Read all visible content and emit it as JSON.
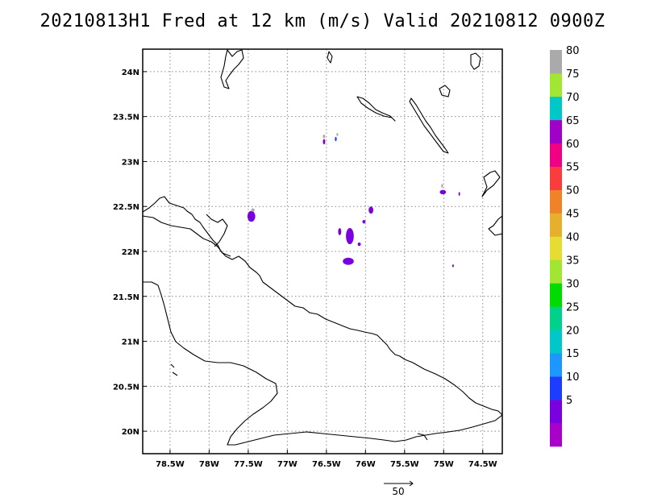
{
  "title": "20210813H1 Fred at 12 km (m/s) Valid 20210812 0900Z",
  "map": {
    "lon_range": [
      -78.85,
      -74.25
    ],
    "lat_range": [
      19.75,
      24.25
    ],
    "x_ticks": [
      {
        "lon": -78.5,
        "label": "78.5W"
      },
      {
        "lon": -78,
        "label": "78W"
      },
      {
        "lon": -77.5,
        "label": "77.5W"
      },
      {
        "lon": -77,
        "label": "77W"
      },
      {
        "lon": -76.5,
        "label": "76.5W"
      },
      {
        "lon": -76,
        "label": "76W"
      },
      {
        "lon": -75.5,
        "label": "75.5W"
      },
      {
        "lon": -75,
        "label": "75W"
      },
      {
        "lon": -74.5,
        "label": "74.5W"
      }
    ],
    "y_ticks": [
      {
        "lat": 24,
        "label": "24N"
      },
      {
        "lat": 23.5,
        "label": "23.5N"
      },
      {
        "lat": 23,
        "label": "23N"
      },
      {
        "lat": 22.5,
        "label": "22.5N"
      },
      {
        "lat": 22,
        "label": "22N"
      },
      {
        "lat": 21.5,
        "label": "21.5N"
      },
      {
        "lat": 21,
        "label": "21N"
      },
      {
        "lat": 20.5,
        "label": "20.5N"
      },
      {
        "lat": 20,
        "label": "20N"
      }
    ],
    "grid": "dotted",
    "coastline_color": "#000000"
  },
  "colorbar": {
    "levels": [
      {
        "color": "#aa00cc",
        "label": ""
      },
      {
        "color": "#7a00e0",
        "label": "5"
      },
      {
        "color": "#1e3cff",
        "label": "10"
      },
      {
        "color": "#1e96ff",
        "label": "15"
      },
      {
        "color": "#00c8c8",
        "label": "20"
      },
      {
        "color": "#00d28c",
        "label": "25"
      },
      {
        "color": "#00dc00",
        "label": "30"
      },
      {
        "color": "#a0e632",
        "label": "35"
      },
      {
        "color": "#e6dc32",
        "label": "40"
      },
      {
        "color": "#e6af2d",
        "label": "45"
      },
      {
        "color": "#f08228",
        "label": "50"
      },
      {
        "color": "#fa3c3c",
        "label": "55"
      },
      {
        "color": "#f00082",
        "label": "60"
      },
      {
        "color": "#a000c8",
        "label": "65"
      },
      {
        "color": "#00c8c8",
        "label": "70"
      },
      {
        "color": "#a0e632",
        "label": "75"
      },
      {
        "color": "#aaaaaa",
        "label": "80"
      }
    ]
  },
  "wind_patches": [
    {
      "lon": -77.46,
      "lat": 22.39,
      "rlon": 0.05,
      "rlat": 0.06,
      "color": "#7a00e0"
    },
    {
      "lon": -77.44,
      "lat": 22.46,
      "rlon": 0.02,
      "rlat": 0.02,
      "color": "#aaaaaa"
    },
    {
      "lon": -76.2,
      "lat": 22.17,
      "rlon": 0.05,
      "rlat": 0.09,
      "color": "#7a00e0"
    },
    {
      "lon": -76.22,
      "lat": 21.89,
      "rlon": 0.07,
      "rlat": 0.04,
      "color": "#7a00e0"
    },
    {
      "lon": -76.33,
      "lat": 22.22,
      "rlon": 0.02,
      "rlat": 0.04,
      "color": "#7a00e0"
    },
    {
      "lon": -75.93,
      "lat": 22.46,
      "rlon": 0.03,
      "rlat": 0.04,
      "color": "#7a00e0"
    },
    {
      "lon": -76.02,
      "lat": 22.33,
      "rlon": 0.02,
      "rlat": 0.02,
      "color": "#7a00e0"
    },
    {
      "lon": -76.08,
      "lat": 22.08,
      "rlon": 0.02,
      "rlat": 0.02,
      "color": "#7a00e0"
    },
    {
      "lon": -76.53,
      "lat": 23.22,
      "rlon": 0.015,
      "rlat": 0.03,
      "color": "#7a00e0"
    },
    {
      "lon": -76.53,
      "lat": 23.28,
      "rlon": 0.015,
      "rlat": 0.02,
      "color": "#aaaaaa"
    },
    {
      "lon": -76.38,
      "lat": 23.25,
      "rlon": 0.012,
      "rlat": 0.025,
      "color": "#1e3cff"
    },
    {
      "lon": -76.36,
      "lat": 23.3,
      "rlon": 0.012,
      "rlat": 0.015,
      "color": "#aaaaaa"
    },
    {
      "lon": -75.01,
      "lat": 22.66,
      "rlon": 0.04,
      "rlat": 0.025,
      "color": "#7a00e0"
    },
    {
      "lon": -75.02,
      "lat": 22.73,
      "rlon": 0.012,
      "rlat": 0.02,
      "color": "#aaaaaa"
    },
    {
      "lon": -74.8,
      "lat": 22.64,
      "rlon": 0.01,
      "rlat": 0.02,
      "color": "#7a00e0"
    },
    {
      "lon": -74.88,
      "lat": 21.84,
      "rlon": 0.01,
      "rlat": 0.015,
      "color": "#7a00e0"
    }
  ],
  "reference_vector": {
    "label": "50"
  }
}
